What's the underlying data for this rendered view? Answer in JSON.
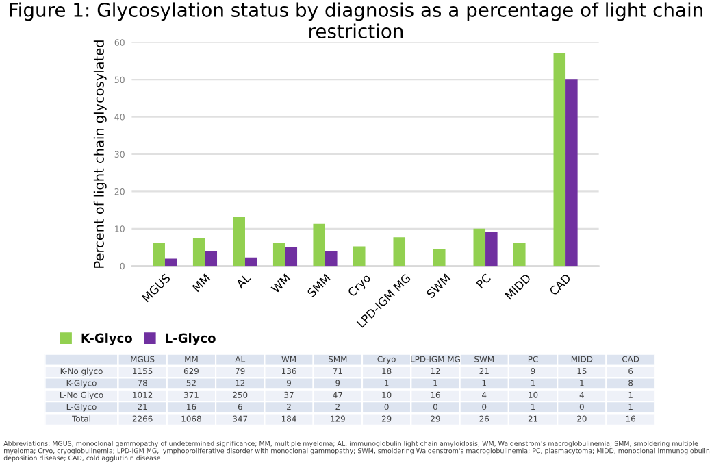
{
  "chart_data": [
    {
      "type": "bar",
      "title": "Figure 1: Glycosylation status by diagnosis as a percentage of light chain restriction",
      "ylabel": "Percent of light chain glycosylated",
      "categories": [
        "MGUS",
        "MM",
        "AL",
        "WM",
        "SMM",
        "Cryo",
        "LPD-IGM MG",
        "SWM",
        "PC",
        "MIDD",
        "CAD"
      ],
      "series": [
        {
          "name": "K-Glyco",
          "color": "#92d050",
          "values": [
            6.3,
            7.6,
            13.2,
            6.2,
            11.3,
            5.3,
            7.7,
            4.5,
            10,
            6.3,
            57.1
          ]
        },
        {
          "name": "L-Glyco",
          "color": "#7030a0",
          "values": [
            2,
            4.1,
            2.3,
            5.1,
            4.1,
            0,
            0,
            0,
            9.1,
            0,
            50
          ]
        }
      ],
      "ylim": [
        0,
        60
      ],
      "yticks": [
        0,
        10,
        20,
        30,
        40,
        50,
        60
      ],
      "grid": "y",
      "legend": "bottom left"
    },
    {
      "type": "other",
      "data_labels": true,
      "categories": [
        "MGUS",
        "MM",
        "AL",
        "WM",
        "SMM",
        "Cryo",
        "LPD-IGM MG",
        "SWM",
        "PC",
        "MIDD",
        "CAD"
      ],
      "series": [
        {
          "name": "K-No glyco",
          "values": [
            1155,
            629,
            79,
            136,
            71,
            18,
            12,
            21,
            9,
            15,
            6
          ]
        },
        {
          "name": "K-Glyco",
          "values": [
            78,
            52,
            12,
            9,
            9,
            1,
            1,
            1,
            1,
            1,
            8
          ]
        },
        {
          "name": "L-No Glyco",
          "values": [
            1012,
            371,
            250,
            37,
            47,
            10,
            16,
            4,
            10,
            4,
            1
          ]
        },
        {
          "name": "L-Glyco",
          "values": [
            21,
            16,
            6,
            2,
            2,
            0,
            0,
            0,
            1,
            0,
            1
          ]
        },
        {
          "name": "Total",
          "values": [
            2266,
            1068,
            347,
            184,
            129,
            29,
            29,
            26,
            21,
            20,
            16
          ]
        }
      ],
      "annotations": [
        "Abbreviations: MGUS, monoclonal gammopathy of undetermined significance; MM, multiple myeloma; AL, immunoglobulin light chain amyloidosis; WM, Waldenstrom's macroglobulinemia; SMM, smoldering multiple myeloma; Cryo, cryoglobulinemia; LPD-IGM MG, lymphoproliferative disorder with monoclonal gammopathy; SWM, smoldering Waldenstrom's macroglobulinemia; PC, plasmacytoma; MIDD, monoclonal immunoglobulin deposition disease; CAD, cold agglutinin disease"
      ]
    }
  ]
}
